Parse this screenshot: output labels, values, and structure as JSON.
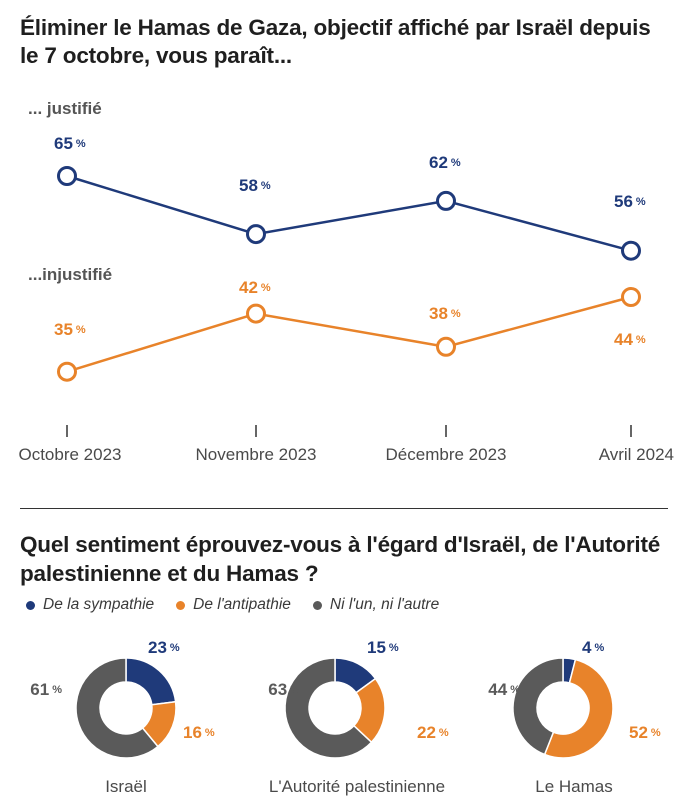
{
  "titles": {
    "chart1": "Éliminer le Hamas de Gaza, objectif affiché par Israël depuis le 7 octobre, vous paraît...",
    "chart2": "Quel sentiment éprouvez-vous à l'égard d'Israël, de l'Autorité palestinienne et du Hamas ?"
  },
  "colors": {
    "blue": "#1f3a7a",
    "orange": "#e8832a",
    "grey": "#5a5a5a"
  },
  "legend": [
    {
      "label": "De la sympathie",
      "color": "#1f3a7a"
    },
    {
      "label": "De l'antipathie",
      "color": "#e8832a"
    },
    {
      "label": "Ni l'un, ni l'autre",
      "color": "#5a5a5a"
    }
  ],
  "chart_data": [
    {
      "type": "line",
      "title": "Éliminer le Hamas de Gaza, objectif affiché par Israël depuis le 7 octobre, vous paraît...",
      "categories": [
        "Octobre 2023",
        "Novembre 2023",
        "Décembre 2023",
        "Avril 2024"
      ],
      "series": [
        {
          "name": "... justifié",
          "color": "#1f3a7a",
          "values": [
            65,
            58,
            62,
            56
          ]
        },
        {
          "name": "...injustifié",
          "color": "#e8832a",
          "values": [
            35,
            42,
            38,
            44
          ]
        }
      ],
      "unit": "%",
      "grid": false
    },
    {
      "type": "pie",
      "title": "Quel sentiment éprouvez-vous à l'égard d'Israël, de l'Autorité palestinienne et du Hamas ?",
      "labels": [
        "De la sympathie",
        "De l'antipathie",
        "Ni l'un, ni l'autre"
      ],
      "donuts": [
        {
          "name": "Israël",
          "values": [
            23,
            16,
            61
          ]
        },
        {
          "name": "L'Autorité palestinienne",
          "values": [
            15,
            22,
            63
          ]
        },
        {
          "name": "Le Hamas",
          "values": [
            4,
            52,
            44
          ]
        }
      ],
      "unit": "%"
    }
  ]
}
